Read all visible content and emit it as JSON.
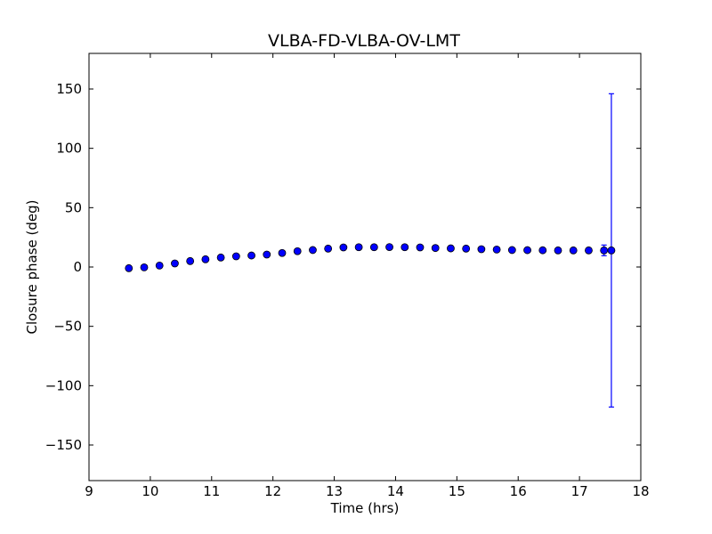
{
  "chart_data": {
    "type": "scatter",
    "title": "VLBA-FD-VLBA-OV-LMT",
    "xlabel": "Time (hrs)",
    "ylabel": "Closure phase (deg)",
    "xlim": [
      9,
      18
    ],
    "ylim": [
      -180,
      180
    ],
    "xticks": [
      9,
      10,
      11,
      12,
      13,
      14,
      15,
      16,
      17,
      18
    ],
    "yticks": [
      -150,
      -100,
      -50,
      0,
      50,
      100,
      150
    ],
    "ytick_labels": [
      "−150",
      "−100",
      "−50",
      "0",
      "50",
      "100",
      "150"
    ],
    "grid": false,
    "marker_color": "#0000ff",
    "errorbar_color": "#0000ff",
    "points": [
      {
        "x": 9.65,
        "y": -1.0
      },
      {
        "x": 9.9,
        "y": -0.3
      },
      {
        "x": 10.15,
        "y": 1.2
      },
      {
        "x": 10.4,
        "y": 3.0
      },
      {
        "x": 10.65,
        "y": 5.0
      },
      {
        "x": 10.9,
        "y": 6.5
      },
      {
        "x": 11.15,
        "y": 8.0
      },
      {
        "x": 11.4,
        "y": 9.0
      },
      {
        "x": 11.65,
        "y": 9.7
      },
      {
        "x": 11.9,
        "y": 10.5
      },
      {
        "x": 12.15,
        "y": 11.8
      },
      {
        "x": 12.4,
        "y": 13.3
      },
      {
        "x": 12.65,
        "y": 14.3
      },
      {
        "x": 12.9,
        "y": 15.5
      },
      {
        "x": 13.15,
        "y": 16.5
      },
      {
        "x": 13.4,
        "y": 16.7
      },
      {
        "x": 13.65,
        "y": 16.7
      },
      {
        "x": 13.9,
        "y": 16.8
      },
      {
        "x": 14.15,
        "y": 16.7
      },
      {
        "x": 14.4,
        "y": 16.5
      },
      {
        "x": 14.65,
        "y": 16.0
      },
      {
        "x": 14.9,
        "y": 15.7
      },
      {
        "x": 15.15,
        "y": 15.5
      },
      {
        "x": 15.4,
        "y": 15.0
      },
      {
        "x": 15.65,
        "y": 14.7
      },
      {
        "x": 15.9,
        "y": 14.3
      },
      {
        "x": 16.15,
        "y": 14.2
      },
      {
        "x": 16.4,
        "y": 14.1
      },
      {
        "x": 16.65,
        "y": 14.0
      },
      {
        "x": 16.9,
        "y": 14.0
      },
      {
        "x": 17.15,
        "y": 14.0
      },
      {
        "x": 17.4,
        "y": 14.0,
        "err": 4.5
      },
      {
        "x": 17.52,
        "y": 14.0,
        "err": 132.0
      }
    ]
  }
}
